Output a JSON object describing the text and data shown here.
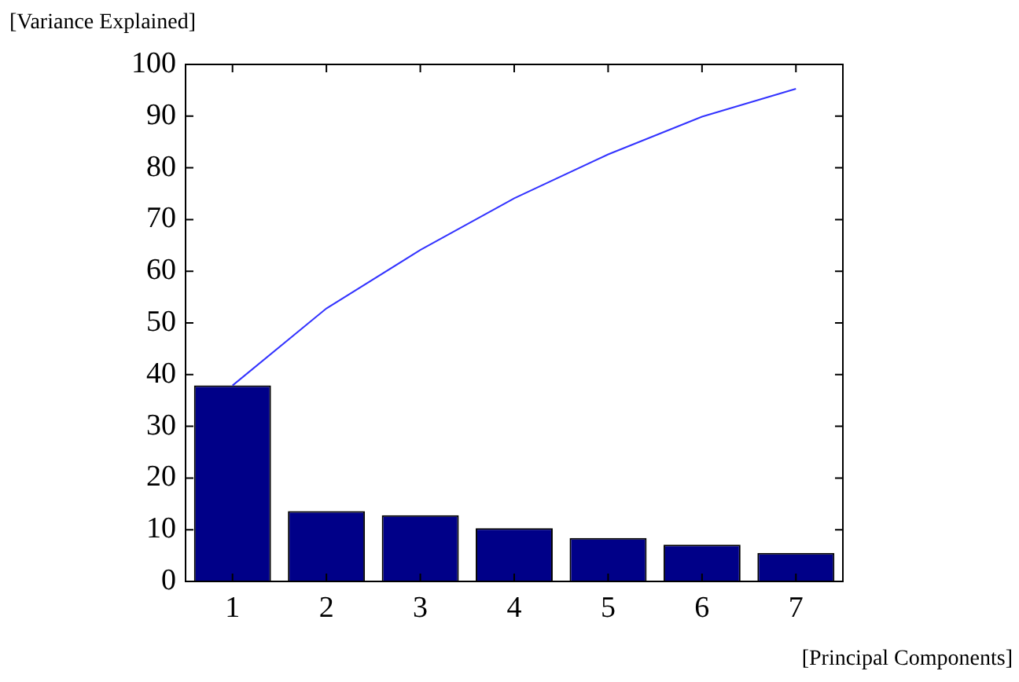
{
  "chart_data": {
    "type": "bar",
    "ylabel": "[Variance Explained]",
    "xlabel": "[Principal Components]",
    "categories": [
      "1",
      "2",
      "3",
      "4",
      "5",
      "6",
      "7"
    ],
    "series": [
      {
        "color": "#000088",
        "values": [
          37.9,
          13.6,
          12.8,
          10.3,
          8.4,
          7.1,
          5.5
        ]
      },
      {
        "type": "line",
        "color": "#3333ff",
        "values": [
          37.9,
          52.8,
          64.1,
          74.1,
          82.6,
          89.9,
          95.3
        ]
      }
    ],
    "ylim": [
      0,
      100
    ],
    "yticks": [
      0,
      10,
      20,
      30,
      40,
      50,
      60,
      70,
      80,
      90,
      100
    ],
    "grid": false,
    "legend": false,
    "marker": "none"
  }
}
